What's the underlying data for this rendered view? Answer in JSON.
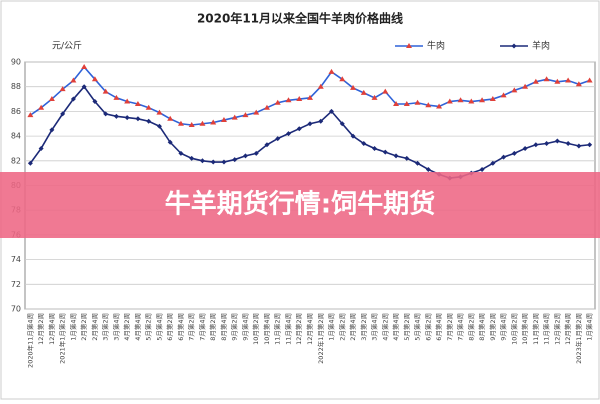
{
  "chart_data": {
    "type": "line",
    "title": "2020年11月以来全国牛羊肉价格曲线",
    "y_label": "元/公斤",
    "overlay_text": "牛羊期货行情:饲牛期货",
    "categories": [
      "2020年11月第4周",
      "12月第2周",
      "12月第4周",
      "2021年1月第2周",
      "1月第4周",
      "2月第2周",
      "2月第4周",
      "3月第2周",
      "3月第4周",
      "4月第2周",
      "4月第4周",
      "5月第2周",
      "5月第4周",
      "6月第2周",
      "6月第4周",
      "7月第2周",
      "7月第4周",
      "8月第2周",
      "8月第4周",
      "9月第2周",
      "9月第4周",
      "10月第2周",
      "10月第4周",
      "11月第2周",
      "11月第4周",
      "12月第2周",
      "12月第4周",
      "2022年1月第2周",
      "1月第4周",
      "2月第2周",
      "2月第4周",
      "3月第2周",
      "3月第4周",
      "4月第2周",
      "4月第4周",
      "5月第2周",
      "5月第4周",
      "6月第2周",
      "6月第4周",
      "7月第2周",
      "7月第4周",
      "8月第2周",
      "8月第4周",
      "9月第2周",
      "9月第4周",
      "10月第2周",
      "10月第4周",
      "11月第2周",
      "11月第4周",
      "12月第2周",
      "12月第4周",
      "2023年1月第2周",
      "1月第4周"
    ],
    "series": [
      {
        "name": "牛肉",
        "color": "#2f62d8",
        "marker_color": "#e0403a",
        "marker": "triangle",
        "values": [
          85.7,
          86.3,
          87,
          87.8,
          88.5,
          89.6,
          88.6,
          87.6,
          87.1,
          86.8,
          86.6,
          86.3,
          85.9,
          85.4,
          85.0,
          84.9,
          85.0,
          85.1,
          85.3,
          85.5,
          85.7,
          85.9,
          86.3,
          86.7,
          86.9,
          87.0,
          87.1,
          88.0,
          89.2,
          88.6,
          87.9,
          87.5,
          87.1,
          87.6,
          86.6,
          86.6,
          86.7,
          86.5,
          86.4,
          86.8,
          86.9,
          86.8,
          86.9,
          87.0,
          87.3,
          87.7,
          88.0,
          88.4,
          88.6,
          88.4,
          88.5,
          88.2,
          88.5
        ]
      },
      {
        "name": "羊肉",
        "color": "#1c2a78",
        "marker_color": "#1c2a78",
        "marker": "diamond",
        "values": [
          81.8,
          83.0,
          84.5,
          85.8,
          87.0,
          88.0,
          86.8,
          85.8,
          85.6,
          85.5,
          85.4,
          85.2,
          84.8,
          83.5,
          82.6,
          82.2,
          82.0,
          81.9,
          81.9,
          82.1,
          82.4,
          82.6,
          83.3,
          83.8,
          84.2,
          84.6,
          85.0,
          85.2,
          86.0,
          85.0,
          84.0,
          83.4,
          83.0,
          82.7,
          82.4,
          82.2,
          81.8,
          81.3,
          80.9,
          80.6,
          80.7,
          81.0,
          81.3,
          81.8,
          82.3,
          82.6,
          83.0,
          83.3,
          83.4,
          83.6,
          83.4,
          83.2,
          83.3
        ]
      }
    ],
    "ylim": [
      70,
      90
    ],
    "yticks": [
      70,
      72,
      74,
      76,
      78,
      80,
      82,
      84,
      86,
      88,
      90
    ],
    "grid": true,
    "legend": "top-right"
  }
}
